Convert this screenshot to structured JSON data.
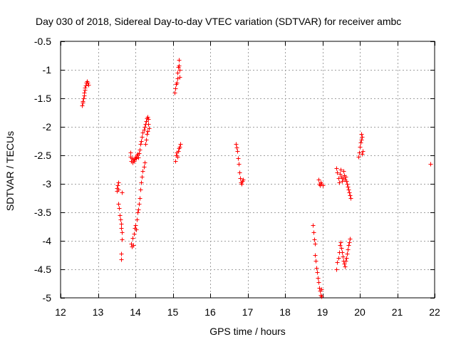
{
  "chart_data": {
    "type": "scatter",
    "title": "Day 030 of 2018, Sidereal Day-to-day VTEC variation (SDTVAR) for receiver ambc",
    "xlabel": "GPS time / hours",
    "ylabel": "SDTVAR / TECUs",
    "xlim": [
      12,
      22
    ],
    "ylim": [
      -5,
      -0.5
    ],
    "xticks": [
      12,
      13,
      14,
      15,
      16,
      17,
      18,
      19,
      20,
      21,
      22
    ],
    "xtick_labels": [
      "12",
      "13",
      "14",
      "15",
      "16",
      "17",
      "18",
      "19",
      "20",
      "21",
      "22"
    ],
    "yticks": [
      -0.5,
      -1,
      -1.5,
      -2,
      -2.5,
      -3,
      -3.5,
      -4,
      -4.5,
      -5
    ],
    "ytick_labels": [
      "-0.5",
      "-1",
      "-1.5",
      "-2",
      "-2.5",
      "-3",
      "-3.5",
      "-4",
      "-4.5",
      "-5"
    ],
    "grid": true,
    "marker": "+",
    "color": "#ff0000",
    "series": [
      {
        "name": "SDTVAR",
        "points": [
          [
            12.58,
            -1.63
          ],
          [
            12.59,
            -1.58
          ],
          [
            12.6,
            -1.55
          ],
          [
            12.61,
            -1.5
          ],
          [
            12.62,
            -1.45
          ],
          [
            12.63,
            -1.4
          ],
          [
            12.64,
            -1.35
          ],
          [
            12.65,
            -1.31
          ],
          [
            12.67,
            -1.27
          ],
          [
            12.69,
            -1.23
          ],
          [
            12.71,
            -1.2
          ],
          [
            12.73,
            -1.22
          ],
          [
            12.74,
            -1.26
          ],
          [
            13.5,
            -3.12
          ],
          [
            13.51,
            -3.08
          ],
          [
            13.52,
            -3.03
          ],
          [
            13.54,
            -2.98
          ],
          [
            13.55,
            -3.1
          ],
          [
            13.55,
            -3.35
          ],
          [
            13.57,
            -3.42
          ],
          [
            13.58,
            -3.55
          ],
          [
            13.6,
            -3.62
          ],
          [
            13.61,
            -3.7
          ],
          [
            13.62,
            -3.78
          ],
          [
            13.63,
            -3.85
          ],
          [
            13.64,
            -3.98
          ],
          [
            13.63,
            -3.15
          ],
          [
            13.62,
            -4.22
          ],
          [
            13.61,
            -4.32
          ],
          [
            13.86,
            -2.45
          ],
          [
            13.87,
            -2.52
          ],
          [
            13.88,
            -2.6
          ],
          [
            13.9,
            -2.55
          ],
          [
            13.92,
            -2.62
          ],
          [
            13.94,
            -2.58
          ],
          [
            13.96,
            -2.6
          ],
          [
            13.98,
            -2.56
          ],
          [
            14.0,
            -2.52
          ],
          [
            14.02,
            -2.55
          ],
          [
            14.04,
            -2.5
          ],
          [
            14.06,
            -2.48
          ],
          [
            14.08,
            -2.54
          ],
          [
            14.1,
            -2.46
          ],
          [
            13.88,
            -4.05
          ],
          [
            13.9,
            -4.1
          ],
          [
            13.92,
            -3.95
          ],
          [
            13.94,
            -4.08
          ],
          [
            13.96,
            -3.88
          ],
          [
            13.98,
            -3.78
          ],
          [
            14.0,
            -3.72
          ],
          [
            14.02,
            -3.8
          ],
          [
            14.04,
            -3.62
          ],
          [
            14.06,
            -3.5
          ],
          [
            14.08,
            -3.45
          ],
          [
            14.1,
            -3.35
          ],
          [
            14.12,
            -3.25
          ],
          [
            14.14,
            -3.1
          ],
          [
            14.16,
            -2.98
          ],
          [
            14.18,
            -2.88
          ],
          [
            14.2,
            -2.78
          ],
          [
            14.22,
            -2.7
          ],
          [
            14.24,
            -2.62
          ],
          [
            14.12,
            -2.4
          ],
          [
            14.14,
            -2.3
          ],
          [
            14.16,
            -2.25
          ],
          [
            14.18,
            -2.18
          ],
          [
            14.2,
            -2.1
          ],
          [
            14.22,
            -2.05
          ],
          [
            14.24,
            -2.0
          ],
          [
            14.26,
            -1.95
          ],
          [
            14.28,
            -1.9
          ],
          [
            14.3,
            -1.85
          ],
          [
            14.32,
            -1.82
          ],
          [
            14.34,
            -1.86
          ],
          [
            14.35,
            -1.95
          ],
          [
            14.36,
            -2.02
          ],
          [
            14.3,
            -2.12
          ],
          [
            14.28,
            -2.22
          ],
          [
            14.26,
            -2.3
          ],
          [
            14.32,
            -2.08
          ],
          [
            15.05,
            -1.4
          ],
          [
            15.06,
            -1.32
          ],
          [
            15.08,
            -1.25
          ],
          [
            15.1,
            -1.22
          ],
          [
            15.12,
            -1.15
          ],
          [
            15.13,
            -1.05
          ],
          [
            15.14,
            -0.95
          ],
          [
            15.16,
            -0.82
          ],
          [
            15.17,
            -0.92
          ],
          [
            15.18,
            -1.0
          ],
          [
            15.19,
            -1.12
          ],
          [
            15.06,
            -2.6
          ],
          [
            15.08,
            -2.5
          ],
          [
            15.1,
            -2.45
          ],
          [
            15.12,
            -2.52
          ],
          [
            15.14,
            -2.42
          ],
          [
            15.16,
            -2.38
          ],
          [
            15.18,
            -2.35
          ],
          [
            15.2,
            -2.3
          ],
          [
            16.68,
            -2.3
          ],
          [
            16.7,
            -2.36
          ],
          [
            16.72,
            -2.42
          ],
          [
            16.74,
            -2.55
          ],
          [
            16.76,
            -2.65
          ],
          [
            16.78,
            -2.8
          ],
          [
            16.8,
            -2.9
          ],
          [
            16.82,
            -2.98
          ],
          [
            16.84,
            -3.0
          ],
          [
            16.86,
            -2.95
          ],
          [
            16.88,
            -2.92
          ],
          [
            18.75,
            -3.72
          ],
          [
            18.76,
            -3.85
          ],
          [
            18.78,
            -3.98
          ],
          [
            18.8,
            -4.05
          ],
          [
            18.8,
            -4.25
          ],
          [
            18.82,
            -4.35
          ],
          [
            18.84,
            -4.48
          ],
          [
            18.86,
            -4.55
          ],
          [
            18.88,
            -4.65
          ],
          [
            18.9,
            -4.72
          ],
          [
            18.92,
            -4.82
          ],
          [
            18.94,
            -4.88
          ],
          [
            18.96,
            -4.95
          ],
          [
            18.97,
            -4.85
          ],
          [
            18.98,
            -4.98
          ],
          [
            18.9,
            -2.92
          ],
          [
            18.92,
            -3.0
          ],
          [
            18.94,
            -3.02
          ],
          [
            18.96,
            -2.98
          ],
          [
            18.98,
            -3.0
          ],
          [
            19.0,
            -3.02
          ],
          [
            19.38,
            -2.72
          ],
          [
            19.4,
            -2.8
          ],
          [
            19.42,
            -2.9
          ],
          [
            19.44,
            -2.98
          ],
          [
            19.46,
            -2.82
          ],
          [
            19.48,
            -2.75
          ],
          [
            19.5,
            -2.88
          ],
          [
            19.52,
            -2.95
          ],
          [
            19.54,
            -2.9
          ],
          [
            19.56,
            -2.78
          ],
          [
            19.58,
            -2.85
          ],
          [
            19.6,
            -2.92
          ],
          [
            19.62,
            -2.88
          ],
          [
            19.64,
            -2.95
          ],
          [
            19.66,
            -3.0
          ],
          [
            19.68,
            -3.05
          ],
          [
            19.7,
            -3.1
          ],
          [
            19.72,
            -3.15
          ],
          [
            19.74,
            -3.2
          ],
          [
            19.76,
            -3.25
          ],
          [
            19.38,
            -4.5
          ],
          [
            19.4,
            -4.38
          ],
          [
            19.42,
            -4.3
          ],
          [
            19.44,
            -4.2
          ],
          [
            19.46,
            -4.08
          ],
          [
            19.48,
            -4.02
          ],
          [
            19.5,
            -4.12
          ],
          [
            19.52,
            -4.2
          ],
          [
            19.54,
            -4.28
          ],
          [
            19.56,
            -4.35
          ],
          [
            19.58,
            -4.4
          ],
          [
            19.6,
            -4.45
          ],
          [
            19.62,
            -4.35
          ],
          [
            19.64,
            -4.3
          ],
          [
            19.66,
            -4.22
          ],
          [
            19.68,
            -4.15
          ],
          [
            19.7,
            -4.08
          ],
          [
            19.72,
            -4.02
          ],
          [
            19.74,
            -3.96
          ],
          [
            19.96,
            -2.52
          ],
          [
            19.98,
            -2.45
          ],
          [
            20.0,
            -2.35
          ],
          [
            20.02,
            -2.28
          ],
          [
            20.04,
            -2.22
          ],
          [
            20.06,
            -2.18
          ],
          [
            20.03,
            -2.12
          ],
          [
            20.05,
            -2.48
          ],
          [
            20.07,
            -2.42
          ],
          [
            21.88,
            -2.65
          ]
        ]
      }
    ]
  }
}
